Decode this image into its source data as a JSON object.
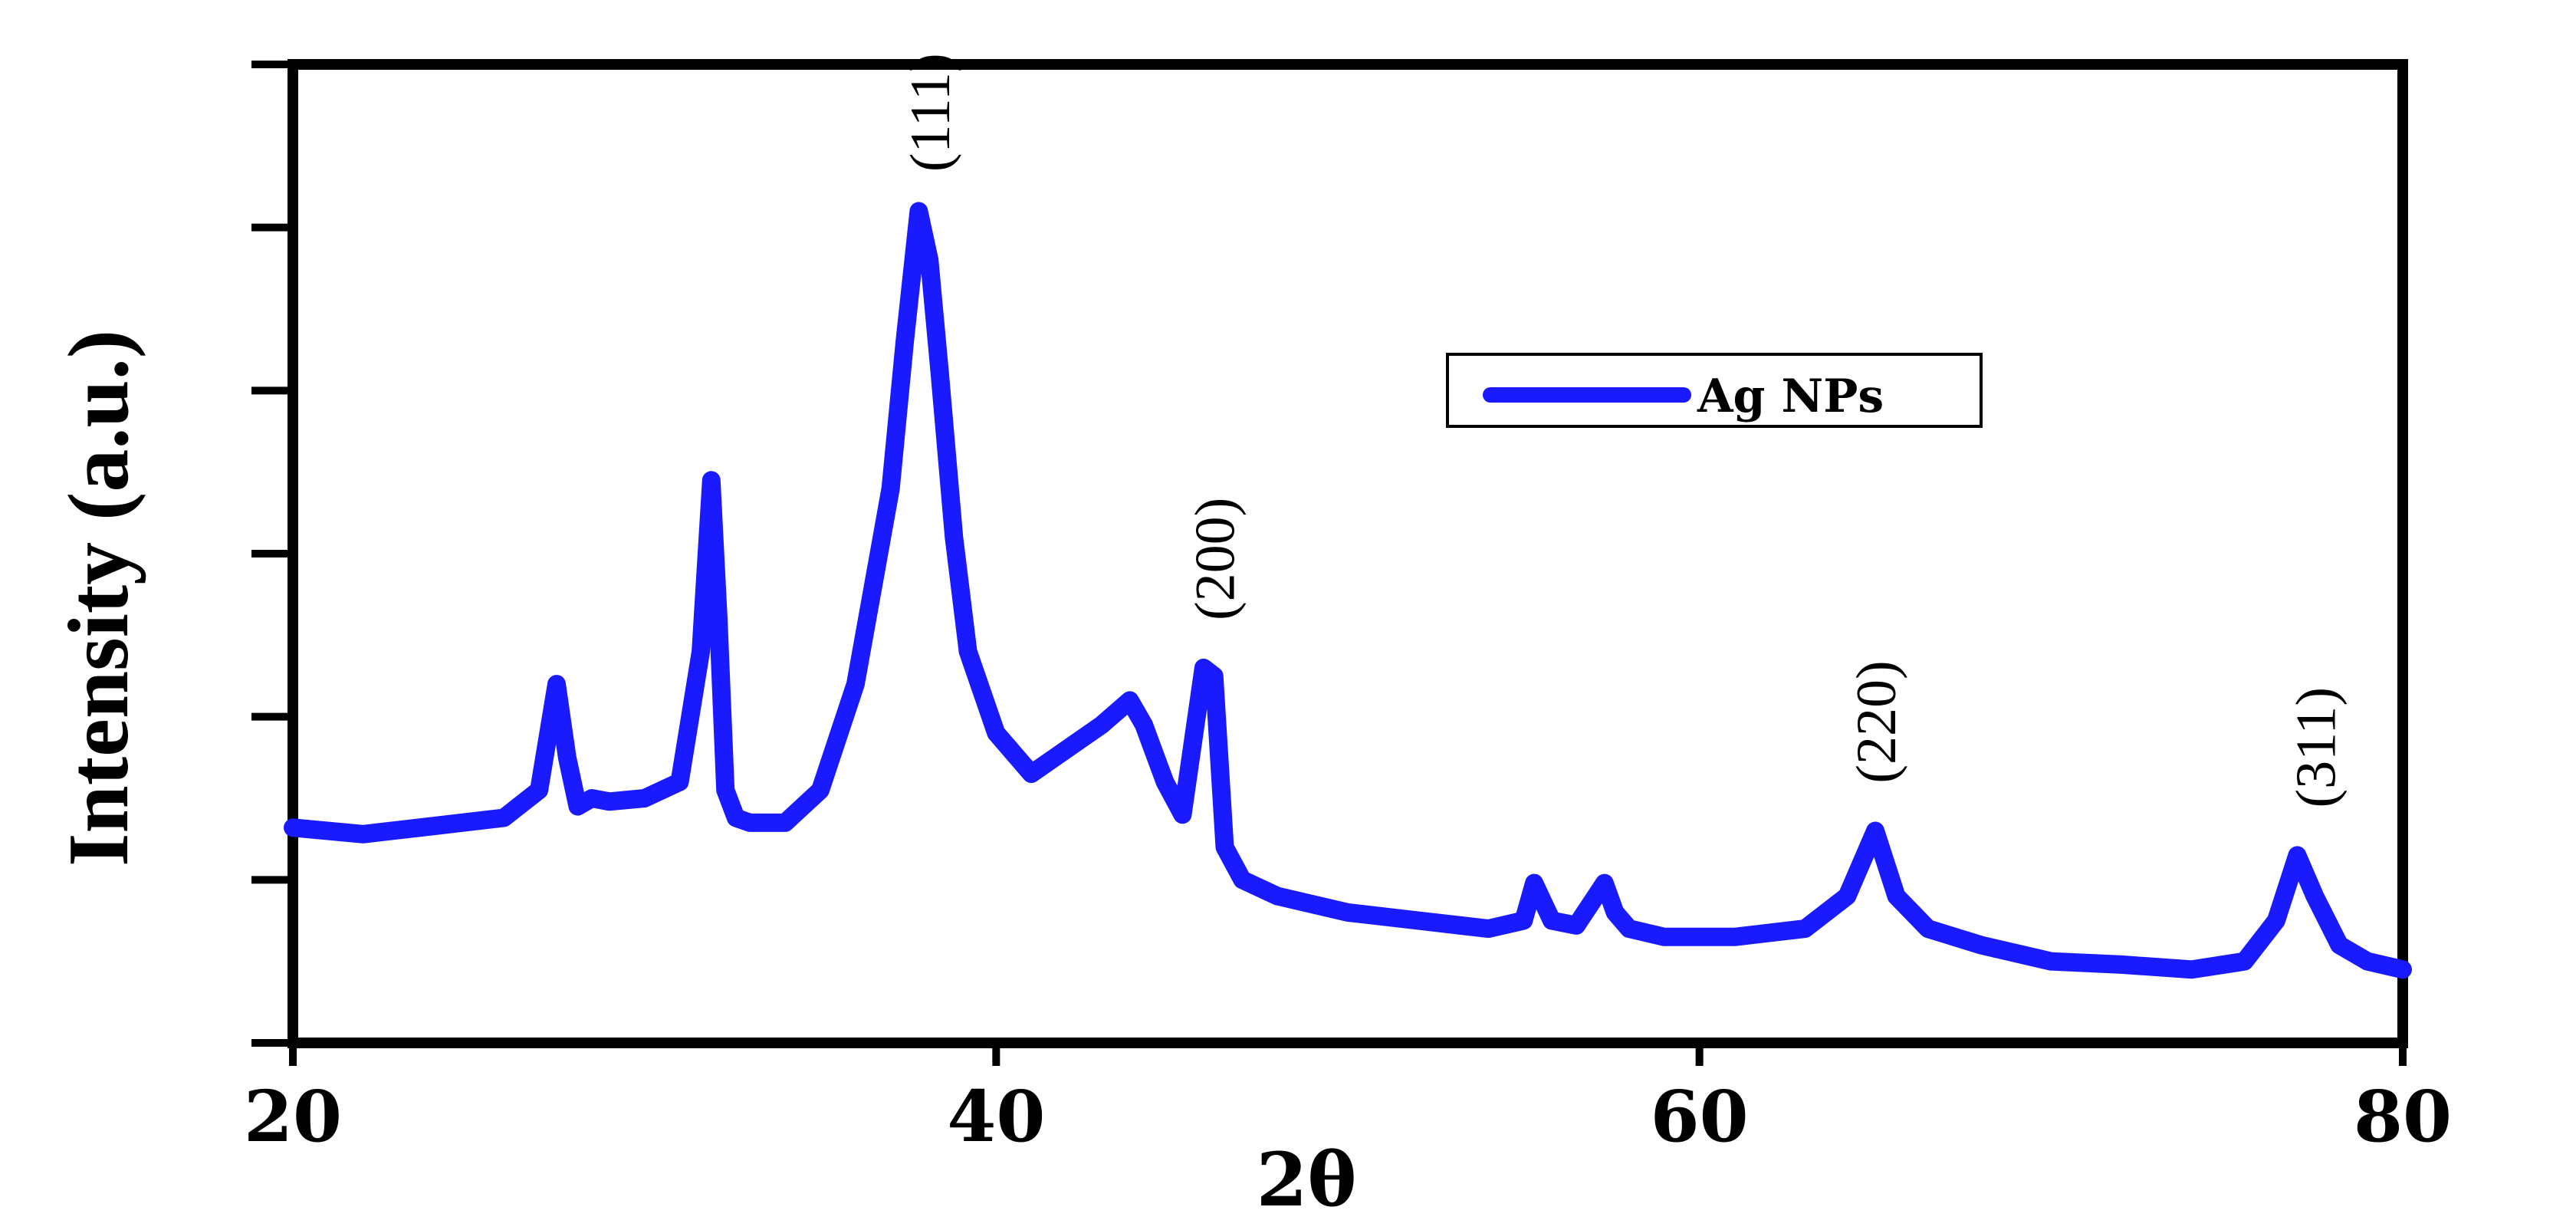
{
  "chart_data": {
    "type": "line",
    "xlabel": "2θ",
    "ylabel": "Intensity (a.u.)",
    "xlim": [
      20,
      80
    ],
    "ylim": [
      0,
      6
    ],
    "x_ticks": [
      "20",
      "40",
      "60",
      "80"
    ],
    "y_ticks_labeled": false,
    "grid": false,
    "legend": {
      "position": "top-right",
      "entries": [
        "Ag NPs"
      ]
    },
    "series": [
      {
        "name": "Ag NPs",
        "color": "#1a1aff",
        "x": [
          20,
          22,
          24,
          26,
          27,
          27.5,
          27.8,
          28.1,
          28.5,
          29,
          30,
          31,
          31.6,
          31.9,
          32.1,
          32.3,
          32.6,
          33,
          34,
          35,
          36,
          37,
          37.4,
          37.8,
          38.1,
          38.4,
          38.8,
          39.2,
          40,
          41,
          42,
          43,
          43.8,
          44.2,
          44.8,
          45.3,
          45.9,
          46.2,
          46.5,
          47,
          48,
          50,
          52,
          54,
          55,
          55.3,
          55.8,
          56.5,
          57.3,
          57.6,
          58,
          59,
          61,
          63,
          64.2,
          65,
          65.6,
          66.5,
          68,
          70,
          72,
          74,
          75.5,
          76.4,
          77,
          77.5,
          78.2,
          79,
          80
        ],
        "y": [
          1.32,
          1.28,
          1.33,
          1.38,
          1.55,
          2.2,
          1.75,
          1.45,
          1.5,
          1.48,
          1.5,
          1.6,
          2.4,
          3.45,
          2.6,
          1.55,
          1.38,
          1.35,
          1.35,
          1.55,
          2.2,
          3.4,
          4.3,
          5.1,
          4.8,
          4.1,
          3.1,
          2.4,
          1.9,
          1.65,
          1.8,
          1.95,
          2.1,
          1.95,
          1.6,
          1.4,
          2.3,
          2.25,
          1.2,
          1.0,
          0.9,
          0.8,
          0.75,
          0.7,
          0.75,
          0.98,
          0.75,
          0.72,
          0.98,
          0.8,
          0.7,
          0.65,
          0.65,
          0.7,
          0.9,
          1.3,
          0.9,
          0.7,
          0.6,
          0.5,
          0.48,
          0.45,
          0.5,
          0.75,
          1.15,
          0.9,
          0.6,
          0.5,
          0.45
        ]
      }
    ],
    "annotations": [
      {
        "text": "(111)",
        "x": 38.1,
        "y": 5.2
      },
      {
        "text": "(200)",
        "x": 46.2,
        "y": 2.45
      },
      {
        "text": "(220)",
        "x": 65.0,
        "y": 1.45
      },
      {
        "text": "(311)",
        "x": 77.5,
        "y": 1.3
      }
    ]
  },
  "colors": {
    "series": "#1a1aff",
    "axes": "#000000"
  }
}
